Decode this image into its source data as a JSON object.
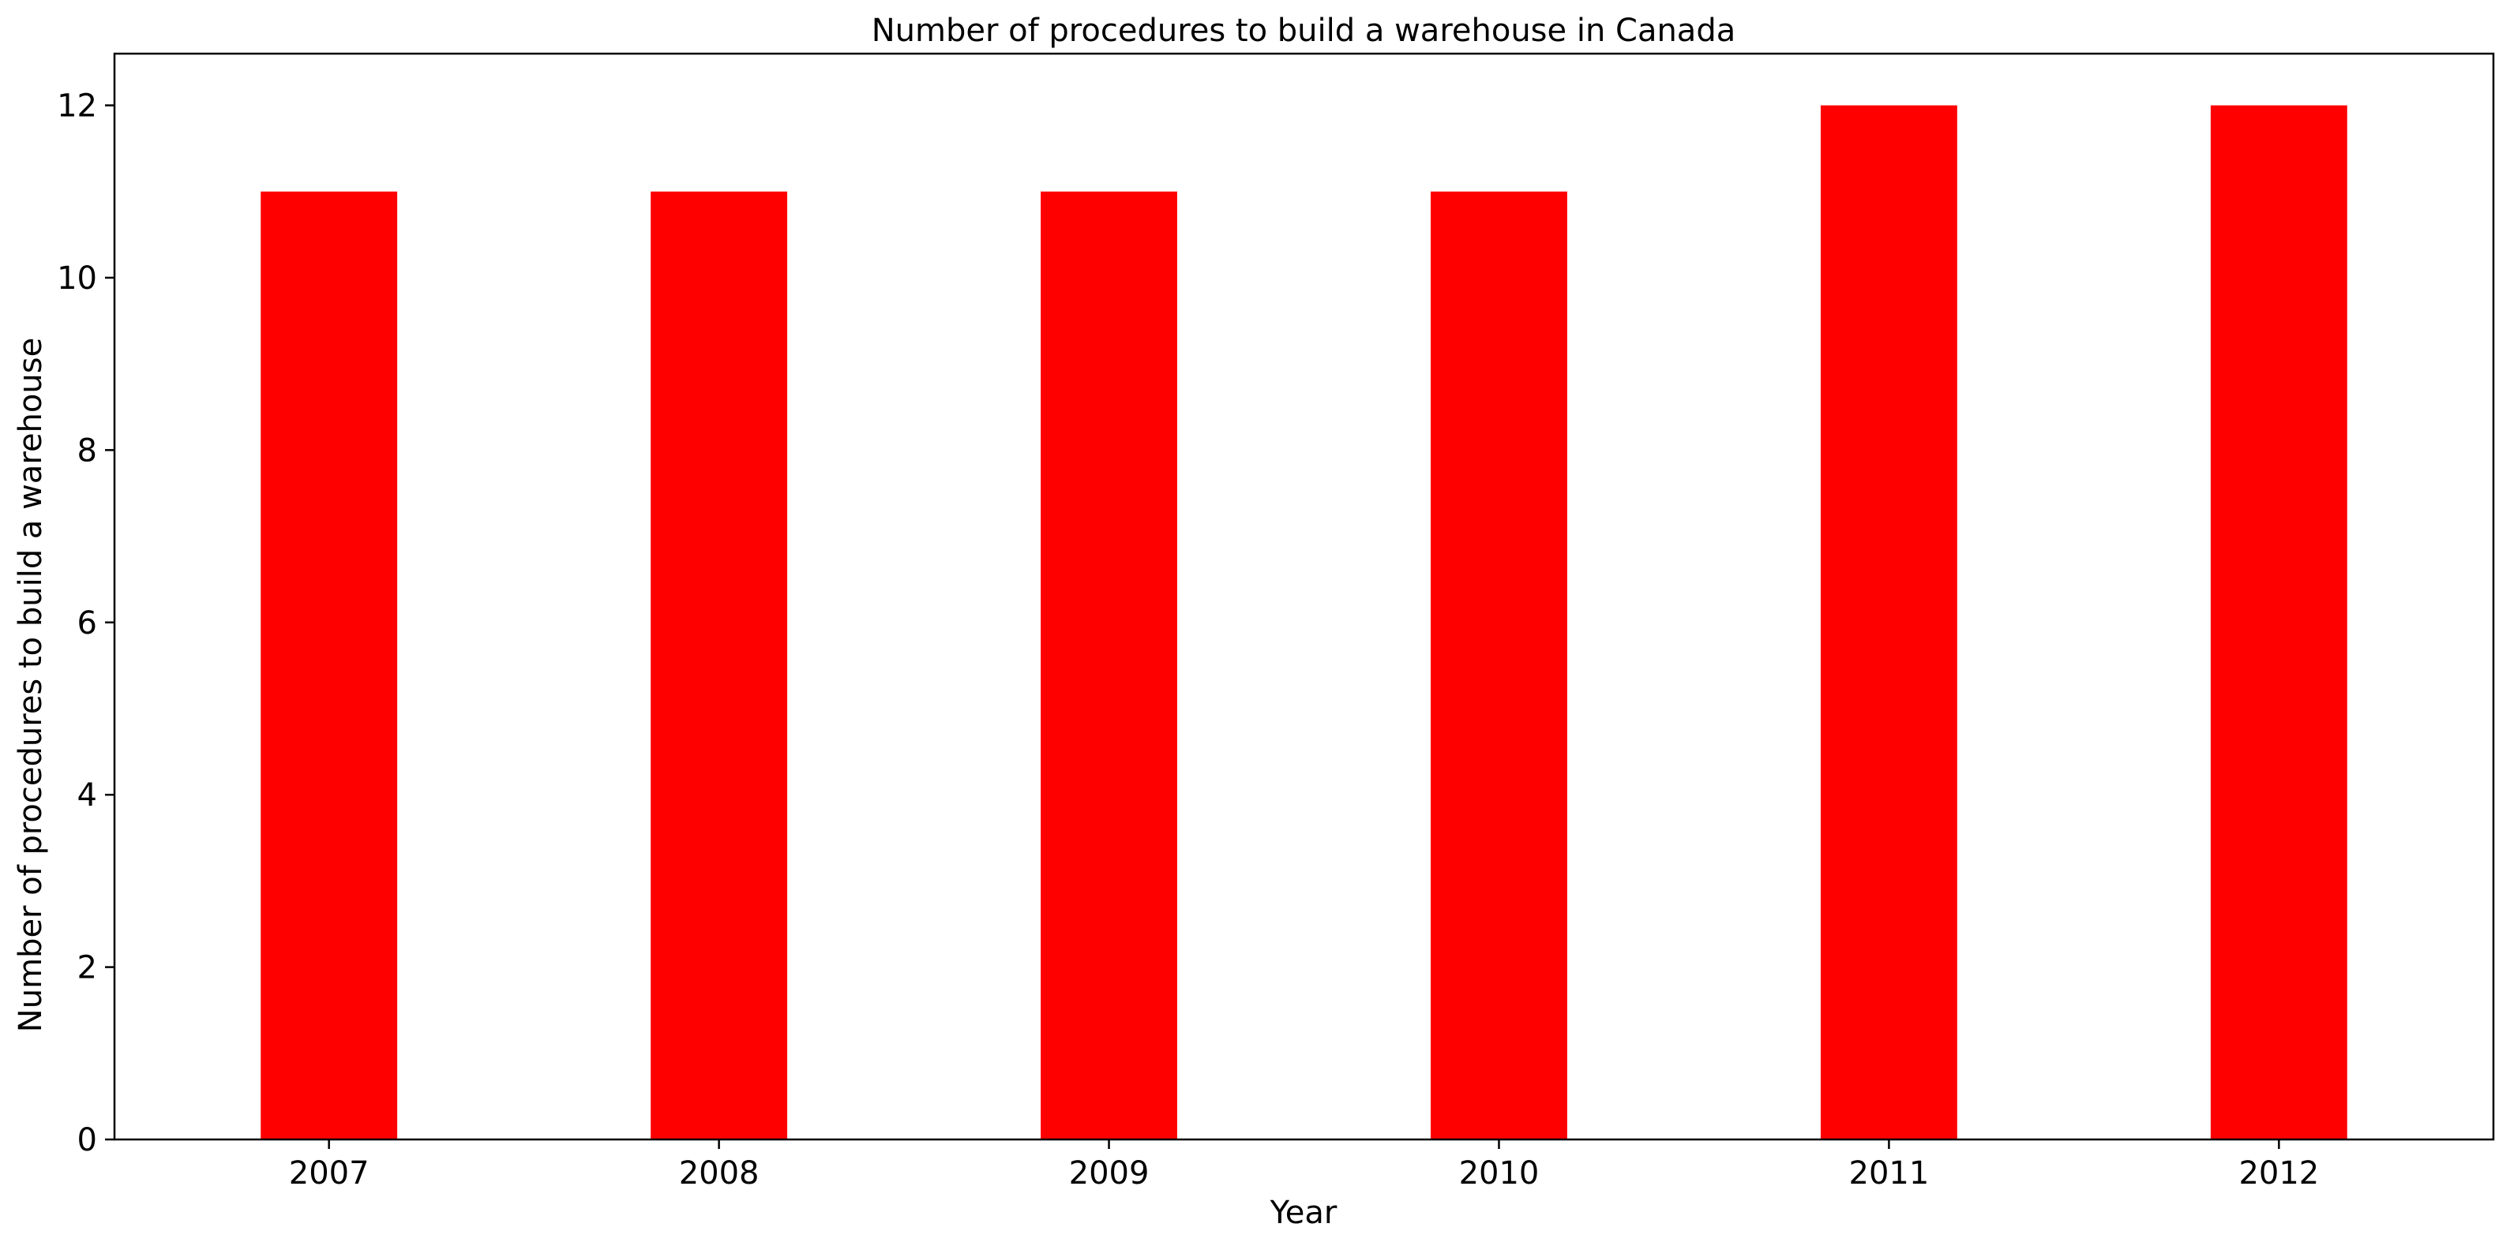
{
  "chart_data": {
    "type": "bar",
    "title": "Number of procedures to build a warehouse in Canada",
    "xlabel": "Year",
    "ylabel": "Number of procedures to build a warehouse",
    "categories": [
      "2007",
      "2008",
      "2009",
      "2010",
      "2011",
      "2012"
    ],
    "values": [
      11,
      11,
      11,
      11,
      12,
      12
    ],
    "ylim": [
      0,
      12.6
    ],
    "yticks": [
      0,
      2,
      4,
      6,
      8,
      10,
      12
    ],
    "grid": false,
    "legend": "none",
    "bar_color": "#ff0000"
  }
}
